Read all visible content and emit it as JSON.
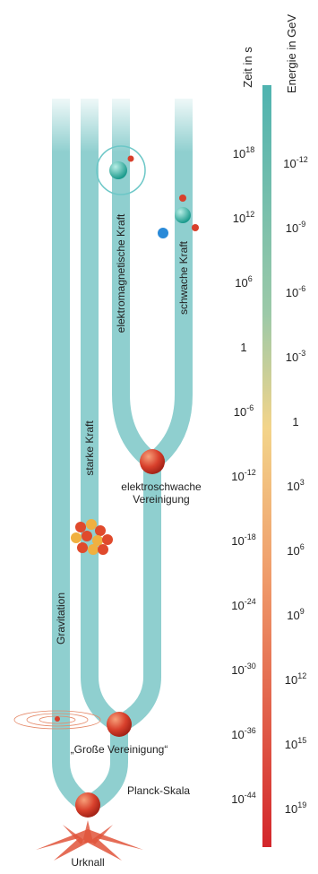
{
  "header": {
    "time_axis": "Zeit in s",
    "energy_axis": "Energie in GeV"
  },
  "time_labels": [
    {
      "base": "10",
      "exp": "18"
    },
    {
      "base": "10",
      "exp": "12"
    },
    {
      "base": "10",
      "exp": "6"
    },
    {
      "base": "1"
    },
    {
      "base": "10",
      "exp": "-6"
    },
    {
      "base": "10",
      "exp": "-12"
    },
    {
      "base": "10",
      "exp": "-18"
    },
    {
      "base": "10",
      "exp": "-24"
    },
    {
      "base": "10",
      "exp": "-30"
    },
    {
      "base": "10",
      "exp": "-36"
    },
    {
      "base": "10",
      "exp": "-44"
    }
  ],
  "energy_labels": [
    {
      "base": "10",
      "exp": "-12"
    },
    {
      "base": "10",
      "exp": "-9"
    },
    {
      "base": "10",
      "exp": "-6"
    },
    {
      "base": "10",
      "exp": "-3"
    },
    {
      "base": "1"
    },
    {
      "base": "10",
      "exp": "3"
    },
    {
      "base": "10",
      "exp": "6"
    },
    {
      "base": "10",
      "exp": "9"
    },
    {
      "base": "10",
      "exp": "12"
    },
    {
      "base": "10",
      "exp": "15"
    },
    {
      "base": "10",
      "exp": "19"
    }
  ],
  "forces": {
    "gravity": "Gravitation",
    "strong": "starke Kraft",
    "electromagnetic": "elektromagnetische Kraft",
    "weak": "schwache Kraft"
  },
  "events": {
    "electroweak": [
      "elektroschwache",
      "Vereinigung"
    ],
    "gut": "„Große Vereinigung“",
    "planck": "Planck-Skala",
    "big_bang": "Urknall"
  }
}
